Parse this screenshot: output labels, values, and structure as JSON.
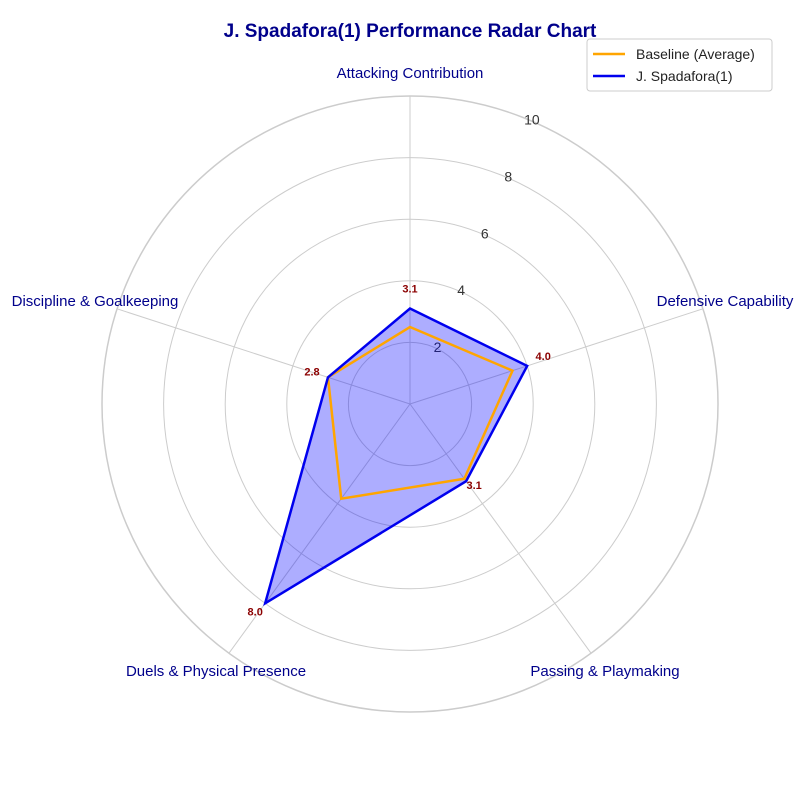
{
  "chart_data": {
    "type": "radar",
    "title": "J. Spadafora(1) Performance Radar Chart",
    "axes": [
      "Attacking Contribution",
      "Defensive Capability",
      "Passing & Playmaking",
      "Duels & Physical Presence",
      "Discipline & Goalkeeping"
    ],
    "r_ticks": [
      "2",
      "4",
      "6",
      "8",
      "10"
    ],
    "rlim": [
      0,
      10
    ],
    "series": [
      {
        "name": "Baseline (Average)",
        "values": [
          2.5,
          3.5,
          3.0,
          3.8,
          2.8
        ],
        "color": "#FFA500",
        "fill": false
      },
      {
        "name": "J. Spadafora(1)",
        "values": [
          3.1,
          4.0,
          3.1,
          8.0,
          2.8
        ],
        "color": "#0000EE",
        "fill": true,
        "fill_color": "#0000FF"
      }
    ],
    "value_labels": [
      "3.1",
      "4.0",
      "3.1",
      "8.0",
      "2.8"
    ],
    "legend": "top-right",
    "grid": true
  },
  "colors": {
    "title": "#00008B",
    "axis_label": "#00008B",
    "value_label": "#8B0000",
    "grid": "#CCCCCC"
  }
}
